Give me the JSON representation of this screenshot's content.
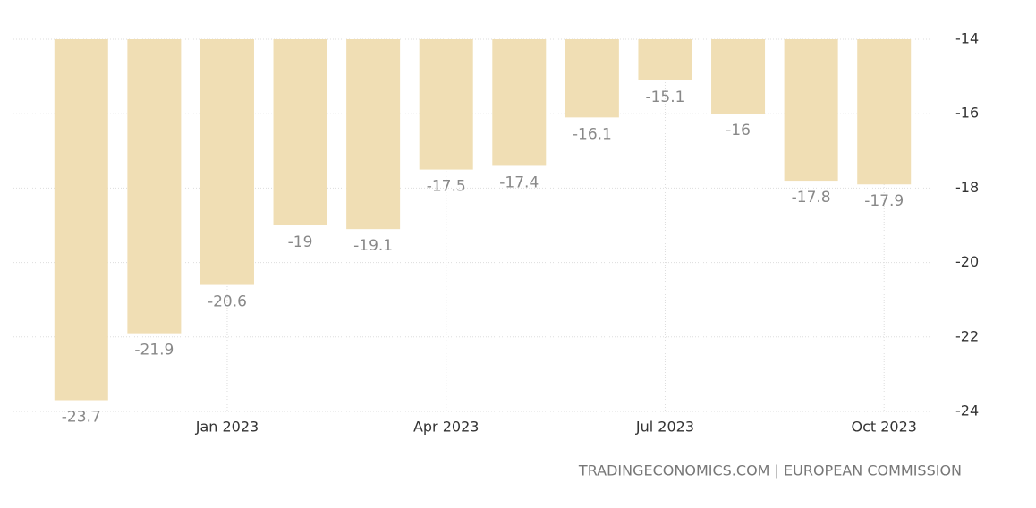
{
  "chart_data": {
    "type": "bar",
    "categories": [
      null,
      null,
      "Jan 2023",
      null,
      null,
      "Apr 2023",
      null,
      null,
      "Jul 2023",
      null,
      null,
      "Oct 2023"
    ],
    "values": [
      -23.7,
      -21.9,
      -20.6,
      -19,
      -19.1,
      -17.5,
      -17.4,
      -16.1,
      -15.1,
      -16,
      -17.8,
      -17.9
    ],
    "color": "#f0deb4",
    "ylim": [
      -24,
      -14
    ],
    "yticks": [
      -24,
      -22,
      -20,
      -18,
      -16,
      -14
    ],
    "grid": true,
    "source": "TRADINGECONOMICS.COM | EUROPEAN COMMISSION"
  }
}
